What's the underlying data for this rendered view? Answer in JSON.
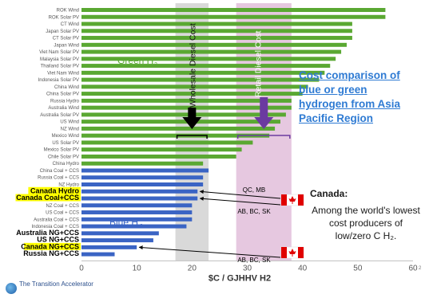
{
  "chart_data": {
    "type": "bar",
    "orientation": "horizontal",
    "xlabel": "$C / GJHHV H2",
    "xlim": [
      0,
      60
    ],
    "xticks": [
      0,
      10,
      20,
      30,
      40,
      50,
      60
    ],
    "grid": false,
    "green_label": "Green H",
    "blue_label": "Blue H",
    "label_subscript": "2",
    "green_color": "#5aa832",
    "blue_color": "#3a64c4",
    "categories": [
      "ROK Wind",
      "ROK Solar PV",
      "CT Wind",
      "Japan Solar PV",
      "CT Solar PV",
      "Japan Wind",
      "Viet Nam Solar PV",
      "Malaysia Solar PV",
      "Thailand Solar PV",
      "Viet Nam Wind",
      "Indonesia Solar PV",
      "China Wind",
      "China Solar PV",
      "Russia Hydro",
      "Australia Wind",
      "Australia Solar PV",
      "US Wind",
      "NZ Wind",
      "Mexico Wind",
      "US Solar PV",
      "Mexico Solar PV",
      "Chile Solar PV",
      "China Hydro",
      "China Coal + CCS",
      "Russia Coal + CCS",
      "NZ Hydro",
      "Canada Hydro",
      "Canada Coal+CCS",
      "NZ Coal + CCS",
      "US Coal + CCS",
      "Australia Coal + CCS",
      "Indonesia Coal + CCS",
      "Australia NG+CCS",
      "US NG+CCS",
      "Canada NG+CCS",
      "Russia NG+CCS"
    ],
    "values": [
      55,
      55,
      49,
      49,
      49,
      48,
      47,
      46,
      45,
      44,
      43,
      41,
      40,
      38,
      38,
      37,
      36,
      35,
      34,
      31,
      29,
      28,
      22,
      23,
      22,
      22,
      21,
      21,
      20,
      20,
      20,
      19,
      14,
      13,
      10,
      6
    ],
    "series_type": [
      "green",
      "green",
      "green",
      "green",
      "green",
      "green",
      "green",
      "green",
      "green",
      "green",
      "green",
      "green",
      "green",
      "green",
      "green",
      "green",
      "green",
      "green",
      "green",
      "green",
      "green",
      "green",
      "green",
      "blue",
      "blue",
      "blue",
      "blue",
      "blue",
      "blue",
      "blue",
      "blue",
      "blue",
      "blue",
      "blue",
      "blue",
      "blue"
    ],
    "emphasized": [
      "Canada Hydro",
      "Canada Coal+CCS",
      "Australia NG+CCS",
      "US NG+CCS",
      "Canada NG+CCS",
      "Russia NG+CCS"
    ],
    "highlighted": [
      "Canada Hydro",
      "Canada Coal+CCS",
      "Canada NG+CCS"
    ],
    "highlight_color": "#ffff00",
    "wholesale_band": [
      17,
      23
    ],
    "retail_band": [
      28,
      38
    ],
    "wholesale_label": "Wholesale Diesel Cost",
    "retail_label": "Retail Diesel Cost",
    "wholesale_color": "#d9d9d9",
    "retail_color": "#e6c8e0",
    "annotations": [
      {
        "text": "QC, MB",
        "x": 33
      },
      {
        "text": "AB, BC, SK",
        "x": 32
      },
      {
        "text": "AB, BC, SK",
        "x": 32
      }
    ]
  },
  "side_title": "Cost comparison of blue or green hydrogen from Asia Pacific Region",
  "canada_heading": "Canada:",
  "canada_text": "Among the world's lowest cost producers of low/zero C H₂.",
  "logo_text": "The Transition Accelerator",
  "page_number": "2"
}
